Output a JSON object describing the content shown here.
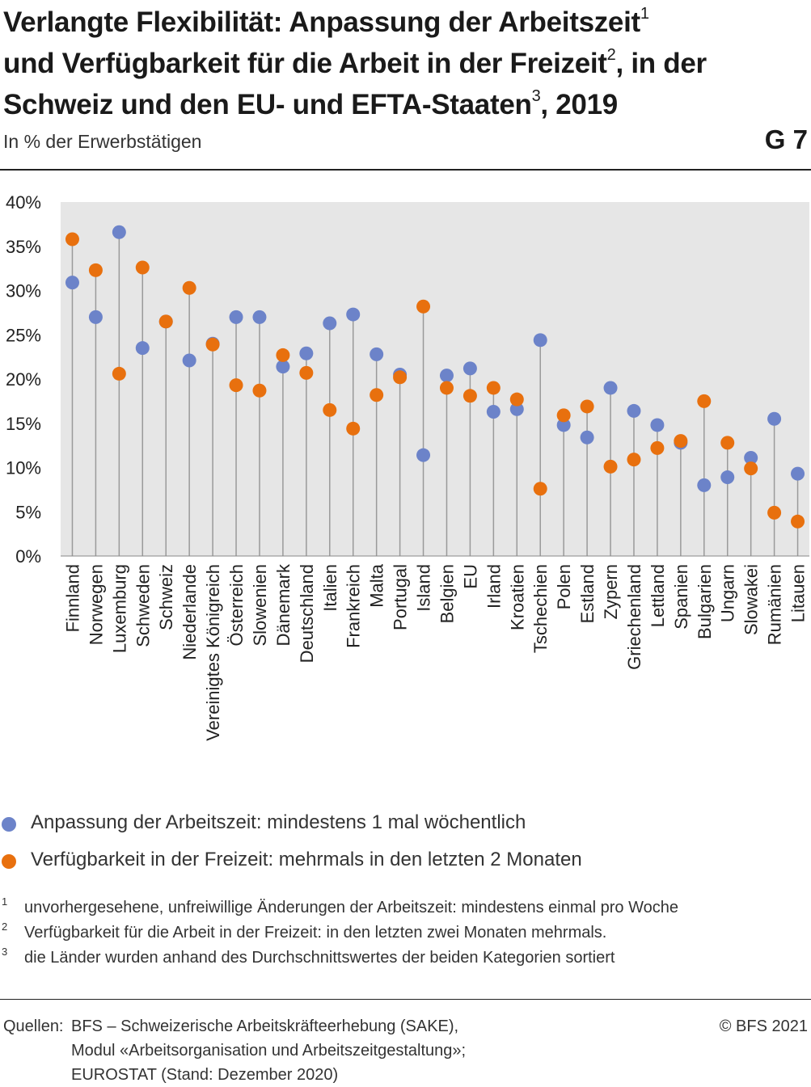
{
  "header": {
    "title_line1": "Verlangte Flexibilität: Anpassung der Arbeitszeit",
    "title_sup1": "1",
    "title_line2": "und Verfügbarkeit für die Arbeit in der Freizeit",
    "title_sup2": "2",
    "title_line2_end": ", in der",
    "title_line3": "Schweiz und den EU- und EFTA-Staaten",
    "title_sup3": "3",
    "title_line3_end": ", 2019",
    "subtitle": "In % der Erwerbstätigen",
    "graphic_number": "G 7"
  },
  "chart_data": {
    "type": "scatter",
    "title": "Verlangte Flexibilität: Anpassung der Arbeitszeit und Verfügbarkeit für die Arbeit in der Freizeit, in der Schweiz und den EU- und EFTA-Staaten, 2019",
    "ylabel": "In % der Erwerbstätigen",
    "ylim": [
      0,
      40
    ],
    "yticks": [
      "0%",
      "5%",
      "10%",
      "15%",
      "20%",
      "25%",
      "30%",
      "35%",
      "40%"
    ],
    "yticks_values": [
      0,
      5,
      10,
      15,
      20,
      25,
      30,
      35,
      40
    ],
    "grid": false,
    "background_color": "#e6e6e6",
    "categories": [
      "Finnland",
      "Norwegen",
      "Luxemburg",
      "Schweden",
      "Schweiz",
      "Niederlande",
      "Vereinigtes Königreich",
      "Österreich",
      "Slowenien",
      "Dänemark",
      "Deutschland",
      "Italien",
      "Frankreich",
      "Malta",
      "Portugal",
      "Island",
      "Belgien",
      "EU",
      "Irland",
      "Kroatien",
      "Tschechien",
      "Polen",
      "Estland",
      "Zypern",
      "Griechenland",
      "Lettland",
      "Spanien",
      "Bulgarien",
      "Ungarn",
      "Slowakei",
      "Rumänien",
      "Litauen"
    ],
    "series": [
      {
        "name": "Anpassung der Arbeitszeit: mindestens 1 mal wöchentlich",
        "color": "#6c83c9",
        "values": [
          30.9,
          27.0,
          36.6,
          23.5,
          26.5,
          22.1,
          24.0,
          27.0,
          27.0,
          21.4,
          22.9,
          26.3,
          27.3,
          22.8,
          20.5,
          11.4,
          20.4,
          21.2,
          16.3,
          16.6,
          24.4,
          14.8,
          13.4,
          19.0,
          16.4,
          14.8,
          12.8,
          8.0,
          8.9,
          11.1,
          15.5,
          9.3
        ]
      },
      {
        "name": "Verfügbarkeit in der Freizeit: mehrmals in den letzten 2 Monaten",
        "color": "#e8700e",
        "values": [
          35.8,
          32.3,
          20.6,
          32.6,
          26.5,
          30.3,
          23.9,
          19.3,
          18.7,
          22.7,
          20.7,
          16.5,
          14.4,
          18.2,
          20.2,
          28.2,
          19.0,
          18.1,
          19.0,
          17.7,
          7.6,
          15.9,
          16.9,
          10.1,
          10.9,
          12.2,
          13.0,
          17.5,
          12.8,
          9.9,
          4.9,
          3.9
        ]
      }
    ],
    "legend_position": "bottom"
  },
  "footnotes": [
    {
      "num": "1",
      "text": "unvorhergesehene, unfreiwillige Änderungen der Arbeitszeit: mindestens einmal pro Woche"
    },
    {
      "num": "2",
      "text": "Verfügbarkeit für die Arbeit in der Freizeit: in den letzten zwei Monaten mehrmals."
    },
    {
      "num": "3",
      "text": "die Länder wurden anhand des Durchschnittswertes der beiden Kategorien sortiert"
    }
  ],
  "source": {
    "label": "Quellen:",
    "lines": [
      "BFS – Schweizerische Arbeitskräfteerhebung (SAKE),",
      "Modul «Arbeitsorganisation und Arbeitszeitgestaltung»;",
      "EUROSTAT (Stand: Dezember 2020)"
    ],
    "copyright": "© BFS 2021"
  }
}
